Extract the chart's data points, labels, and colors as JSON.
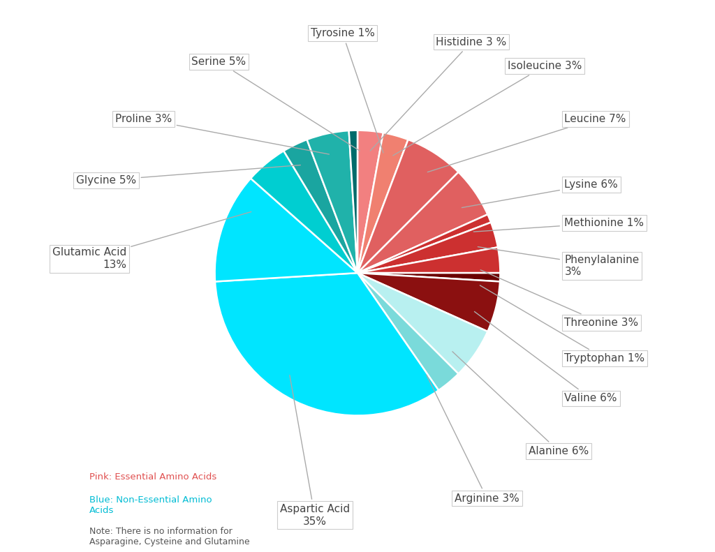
{
  "labels": [
    "Histidine",
    "Isoleucine",
    "Leucine",
    "Lysine",
    "Methionine",
    "Phenylalanine",
    "Threonine",
    "Tryptophan",
    "Valine",
    "Alanine",
    "Arginine",
    "Aspartic Acid",
    "Glutamic Acid",
    "Glycine",
    "Proline",
    "Serine",
    "Tyrosine"
  ],
  "percentages": [
    3,
    3,
    7,
    6,
    1,
    3,
    3,
    1,
    6,
    6,
    3,
    35,
    13,
    5,
    3,
    5,
    1
  ],
  "slice_colors": [
    "#F28080",
    "#F08070",
    "#E06060",
    "#E06060",
    "#CC3030",
    "#CC3030",
    "#CC3030",
    "#6B0000",
    "#8B1010",
    "#B8F0F0",
    "#7ADADA",
    "#00E5FF",
    "#00E5FF",
    "#00CED1",
    "#1AA5A0",
    "#20B2AA",
    "#006B6B"
  ],
  "label_display": [
    "Histidine 3 %",
    "Isoleucine 3%",
    "Leucine 7%",
    "Lysine 6%",
    "Methionine 1%",
    "Phenylalanine\n3%",
    "Threonine 3%",
    "Tryptophan 1%",
    "Valine 6%",
    "Alanine 6%",
    "Arginine 3%",
    "Aspartic Acid\n35%",
    "Glutamic Acid\n13%",
    "Glycine 5%",
    "Proline 3%",
    "Serine 5%",
    "Tyrosine 1%"
  ],
  "background_color": "#FFFFFF",
  "legend_essential_color": "#E05050",
  "legend_nonessential_color": "#00BCD4",
  "note_color": "#555555",
  "label_color": "#444444",
  "line_color": "#AAAAAA"
}
